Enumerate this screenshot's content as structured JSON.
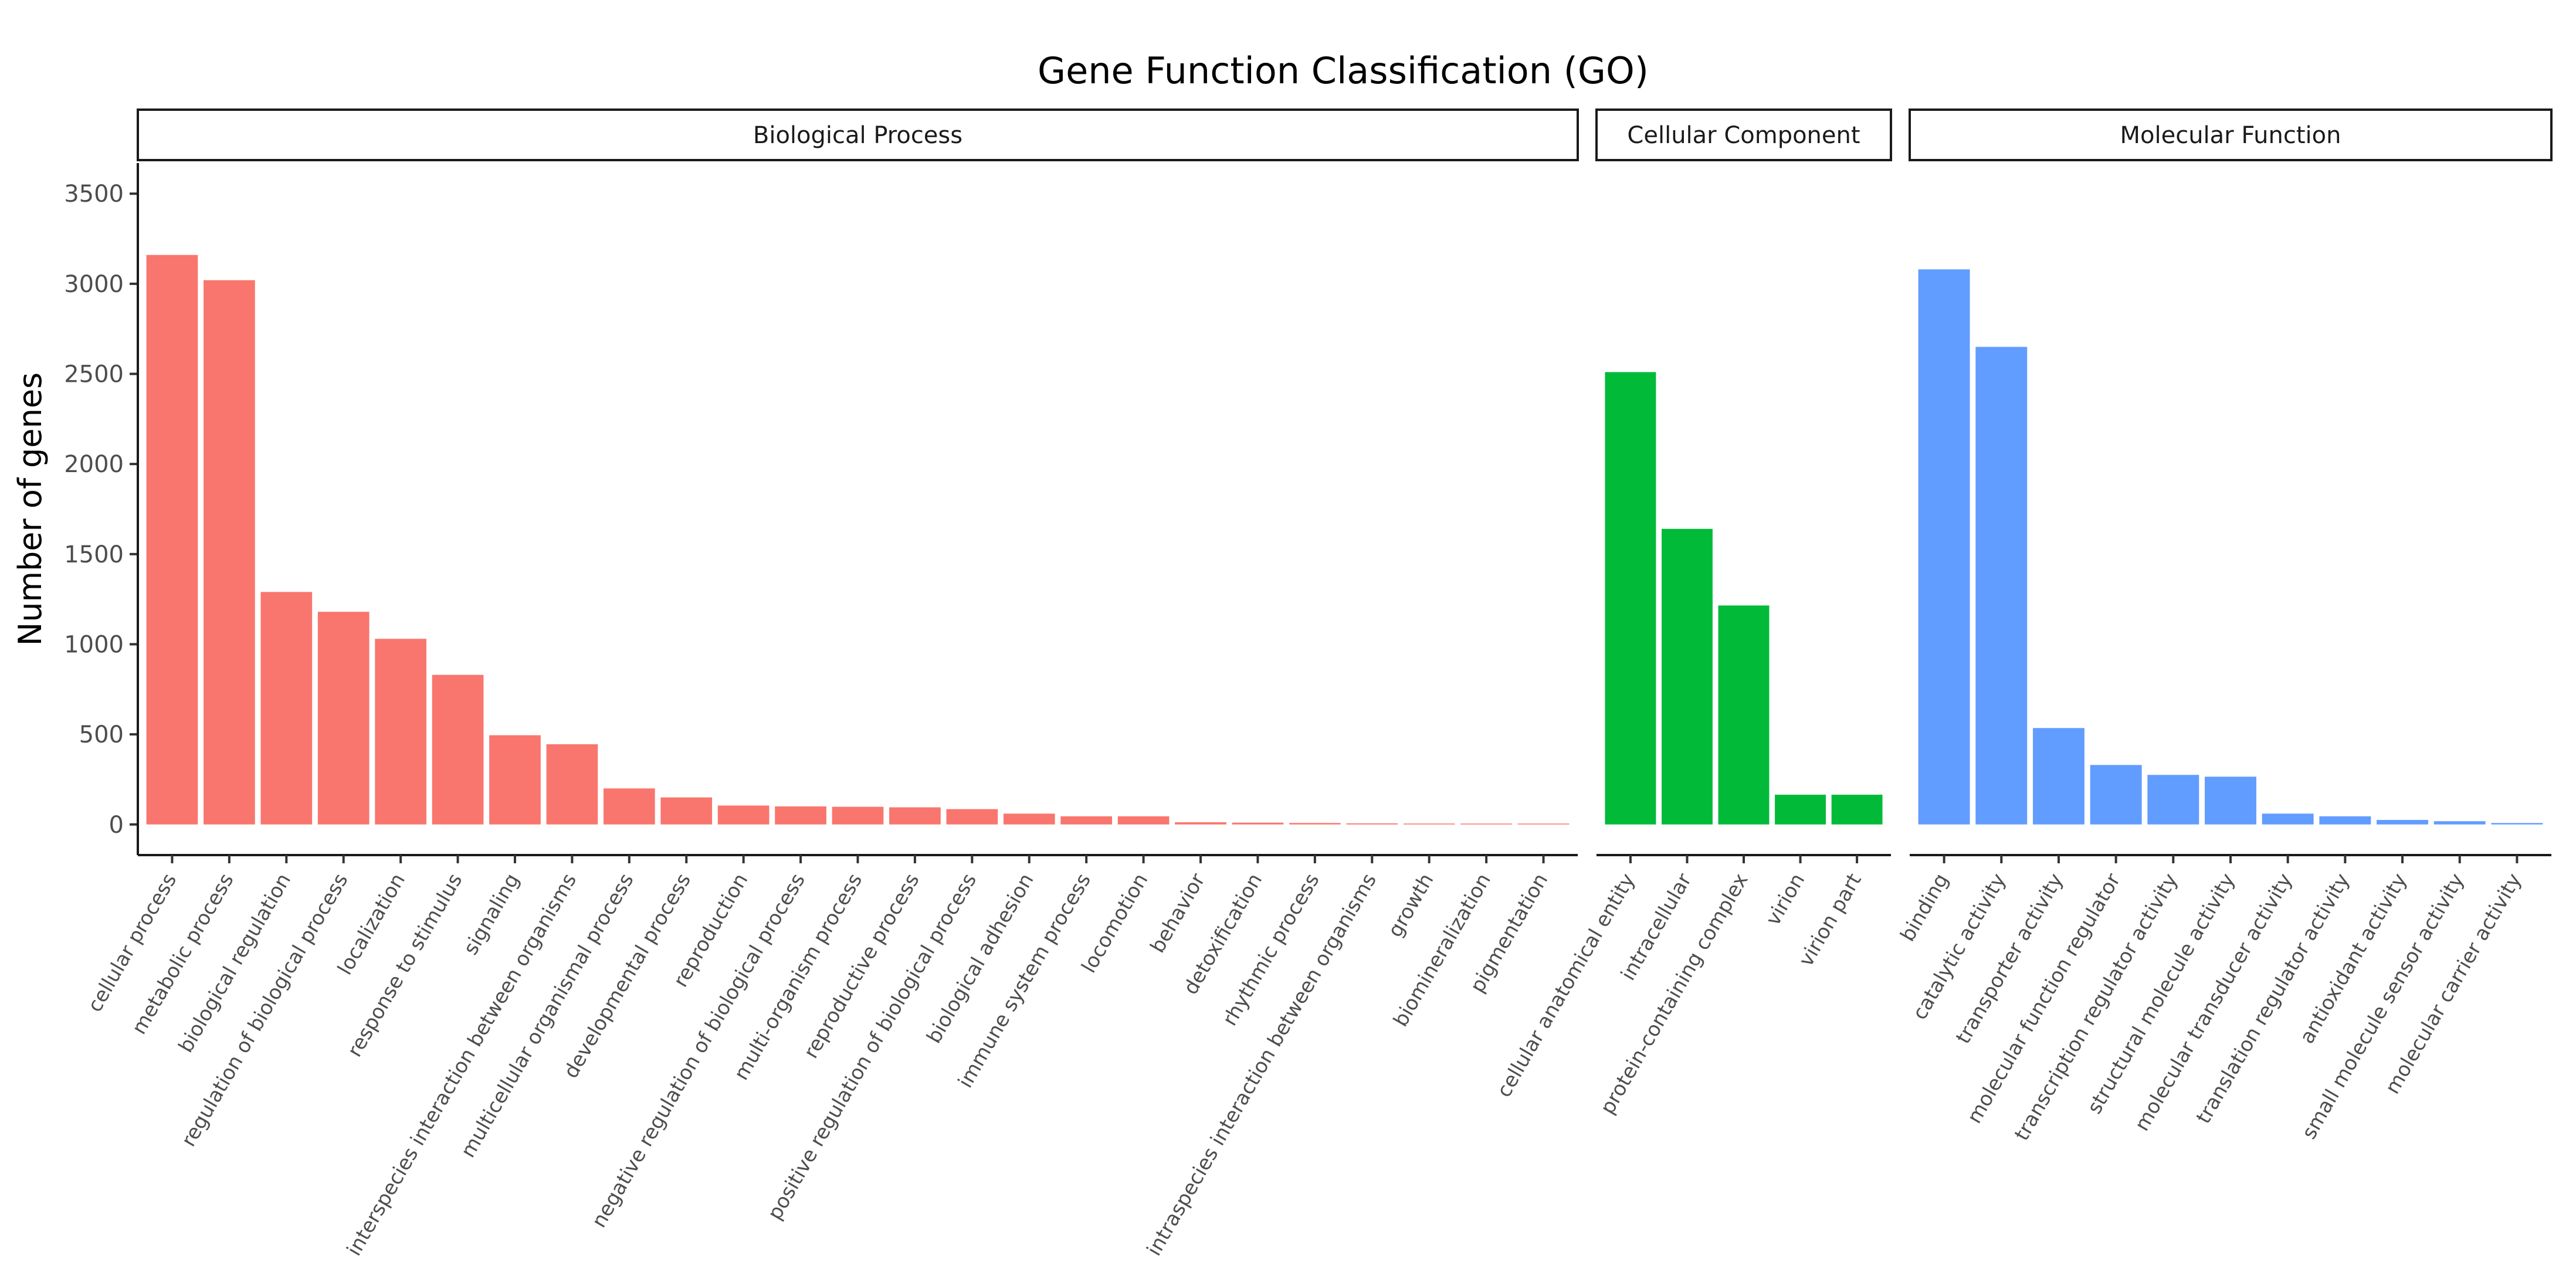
{
  "chart_data": {
    "type": "bar",
    "title": "Gene Function Classification (GO)",
    "xlabel": "",
    "ylabel": "Number of genes",
    "ylim": [
      -170,
      3670
    ],
    "yticks": [
      0,
      500,
      1000,
      1500,
      2000,
      2500,
      3000,
      3500
    ],
    "grid": false,
    "legend": "none",
    "facets": [
      {
        "name": "Biological Process",
        "color": "#F8766D",
        "categories": [
          "cellular process",
          "metabolic process",
          "biological regulation",
          "regulation of biological process",
          "localization",
          "response to stimulus",
          "signaling",
          "interspecies interaction between organisms",
          "multicellular organismal process",
          "developmental process",
          "reproduction",
          "negative regulation of biological process",
          "multi-organism process",
          "reproductive process",
          "positive regulation of biological process",
          "biological adhesion",
          "immune system process",
          "locomotion",
          "behavior",
          "detoxification",
          "rhythmic process",
          "intraspecies interaction between organisms",
          "growth",
          "biomineralization",
          "pigmentation"
        ],
        "values": [
          3160,
          3020,
          1290,
          1180,
          1030,
          830,
          495,
          445,
          200,
          150,
          105,
          100,
          98,
          95,
          85,
          60,
          45,
          45,
          12,
          10,
          8,
          6,
          5,
          2,
          1
        ]
      },
      {
        "name": "Cellular Component",
        "color": "#00BA38",
        "categories": [
          "cellular anatomical entity",
          "intracellular",
          "protein-containing complex",
          "virion",
          "virion part"
        ],
        "values": [
          2510,
          1640,
          1215,
          165,
          165
        ]
      },
      {
        "name": "Molecular Function",
        "color": "#619CFF",
        "categories": [
          "binding",
          "catalytic activity",
          "transporter activity",
          "molecular function regulator",
          "transcription regulator activity",
          "structural molecule activity",
          "molecular transducer activity",
          "translation regulator activity",
          "antioxidant activity",
          "small molecule sensor activity",
          "molecular carrier activity"
        ],
        "values": [
          3080,
          2650,
          535,
          330,
          275,
          265,
          60,
          45,
          25,
          18,
          8
        ]
      }
    ]
  }
}
